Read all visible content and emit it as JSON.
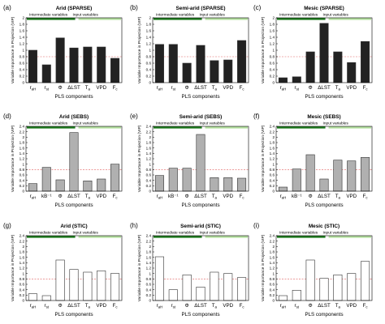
{
  "figure": {
    "colors": {
      "sparse_bar": "#222222",
      "sebs_bar": "#b0b0b0",
      "stic_bar": "#ffffff",
      "bar_edge": "#333333",
      "intermediate_band": "#1f7a1f",
      "input_band": "#b5e0a0",
      "threshold_line": "#e06060"
    },
    "intermediate_label": "Intermediate variables",
    "input_label": "Input variables",
    "ylabel": "Variable Importance in Projection (VIP)",
    "xlabel": "PLS components",
    "threshold": 0.8
  },
  "chart_data": [
    {
      "panel_label": "(a)",
      "title": "Arid (SPARSE)",
      "type": "bar",
      "categories": [
        "r_aH",
        "r_st",
        "Φ",
        "ΔLST",
        "T_a",
        "VPD",
        "F_c"
      ],
      "values": [
        1.0,
        0.55,
        1.38,
        1.07,
        1.1,
        1.1,
        0.75
      ],
      "ylim": [
        0,
        2
      ],
      "yticks": [
        0,
        0.2,
        0.4,
        0.6,
        0.8,
        1,
        1.2,
        1.4,
        1.6,
        1.8,
        2
      ],
      "xlabel": "PLS components",
      "ylabel": "Variable Importance in Projection (VIP)"
    },
    {
      "panel_label": "(b)",
      "title": "Semi-arid (SPARSE)",
      "type": "bar",
      "categories": [
        "r_aH",
        "r_st",
        "Φ",
        "ΔLST",
        "T_a",
        "VPD",
        "F_c"
      ],
      "values": [
        1.18,
        1.18,
        0.6,
        1.15,
        0.68,
        0.7,
        1.3
      ],
      "ylim": [
        0,
        2
      ],
      "yticks": [
        0,
        0.2,
        0.4,
        0.6,
        0.8,
        1,
        1.2,
        1.4,
        1.6,
        1.8,
        2
      ],
      "xlabel": "PLS components",
      "ylabel": "Variable Importance in Projection (VIP)"
    },
    {
      "panel_label": "(c)",
      "title": "Mesic (SPARSE)",
      "type": "bar",
      "categories": [
        "r_aH",
        "r_st",
        "Φ",
        "ΔLST",
        "T_a",
        "VPD",
        "F_c"
      ],
      "values": [
        0.15,
        0.18,
        0.95,
        1.83,
        0.95,
        0.62,
        1.27
      ],
      "ylim": [
        0,
        2
      ],
      "yticks": [
        0,
        0.2,
        0.4,
        0.6,
        0.8,
        1,
        1.2,
        1.4,
        1.6,
        1.8,
        2
      ],
      "xlabel": "PLS components",
      "ylabel": "Variable Importance in Projection (VIP)"
    },
    {
      "panel_label": "(d)",
      "title": "Arid (SEBS)",
      "type": "bar",
      "categories": [
        "r_aH",
        "kB⁻¹",
        "Φ",
        "ΔLST",
        "T_a",
        "VPD",
        "F_c"
      ],
      "values": [
        0.28,
        0.88,
        0.42,
        2.17,
        0.38,
        0.45,
        1.0
      ],
      "ylim": [
        0,
        2.4
      ],
      "yticks": [
        0,
        0.2,
        0.4,
        0.6,
        0.8,
        1,
        1.2,
        1.4,
        1.6,
        1.8,
        2,
        2.2,
        2.4
      ],
      "xlabel": "PLS components",
      "ylabel": "Variable Importance in Projection (VIP)"
    },
    {
      "panel_label": "(e)",
      "title": "Semi-arid (SEBS)",
      "type": "bar",
      "categories": [
        "r_aH",
        "kB⁻¹",
        "Φ",
        "ΔLST",
        "T_a",
        "VPD",
        "F_c"
      ],
      "values": [
        0.58,
        0.85,
        0.85,
        2.1,
        0.5,
        0.5,
        0.48
      ],
      "ylim": [
        0,
        2.4
      ],
      "yticks": [
        0,
        0.2,
        0.4,
        0.6,
        0.8,
        1,
        1.2,
        1.4,
        1.6,
        1.8,
        2,
        2.2,
        2.4
      ],
      "xlabel": "PLS components",
      "ylabel": "Variable Importance in Projection (VIP)"
    },
    {
      "panel_label": "(f)",
      "title": "Mesic (SEBS)",
      "type": "bar",
      "categories": [
        "r_aH",
        "kB⁻¹",
        "Φ",
        "ΔLST",
        "T_a",
        "VPD",
        "F_c"
      ],
      "values": [
        0.15,
        0.82,
        1.35,
        0.45,
        1.15,
        1.12,
        1.25
      ],
      "ylim": [
        0,
        2.4
      ],
      "yticks": [
        0,
        0.2,
        0.4,
        0.6,
        0.8,
        1,
        1.2,
        1.4,
        1.6,
        1.8,
        2,
        2.2,
        2.4
      ],
      "xlabel": "PLS components",
      "ylabel": "Variable Importance in Projection (VIP)"
    },
    {
      "panel_label": "(g)",
      "title": "Arid (STIC)",
      "type": "bar",
      "categories": [
        "r_aH",
        "r_st",
        "Φ",
        "ΔLST",
        "T_a",
        "VPD",
        "F_c"
      ],
      "values": [
        0.25,
        0.18,
        1.5,
        1.15,
        1.05,
        1.1,
        1.0
      ],
      "ylim": [
        0,
        2.4
      ],
      "yticks": [
        0,
        0.2,
        0.4,
        0.6,
        0.8,
        1,
        1.2,
        1.4,
        1.6,
        1.8,
        2,
        2.2,
        2.4
      ],
      "xlabel": "PLS components",
      "ylabel": "Variable Importance in Projection (VIP)"
    },
    {
      "panel_label": "(h)",
      "title": "Semi-arid (STIC)",
      "type": "bar",
      "categories": [
        "r_aH",
        "r_st",
        "Φ",
        "ΔLST",
        "T_a",
        "VPD",
        "F_c"
      ],
      "values": [
        1.62,
        0.4,
        0.95,
        0.5,
        1.05,
        1.0,
        0.85
      ],
      "ylim": [
        0,
        2.4
      ],
      "yticks": [
        0,
        0.2,
        0.4,
        0.6,
        0.8,
        1,
        1.2,
        1.4,
        1.6,
        1.8,
        2,
        2.2,
        2.4
      ],
      "xlabel": "PLS components",
      "ylabel": "Variable Importance in Projection (VIP)"
    },
    {
      "panel_label": "(i)",
      "title": "Mesic (STIC)",
      "type": "bar",
      "categories": [
        "r_aH",
        "r_st",
        "Φ",
        "ΔLST",
        "T_a",
        "VPD",
        "F_c"
      ],
      "values": [
        0.18,
        0.38,
        1.5,
        0.82,
        0.95,
        1.0,
        1.45
      ],
      "ylim": [
        0,
        2.4
      ],
      "yticks": [
        0,
        0.2,
        0.4,
        0.6,
        0.8,
        1,
        1.2,
        1.4,
        1.6,
        1.8,
        2,
        2.2,
        2.4
      ],
      "xlabel": "PLS components",
      "ylabel": "Variable Importance in Projection (VIP)"
    }
  ]
}
